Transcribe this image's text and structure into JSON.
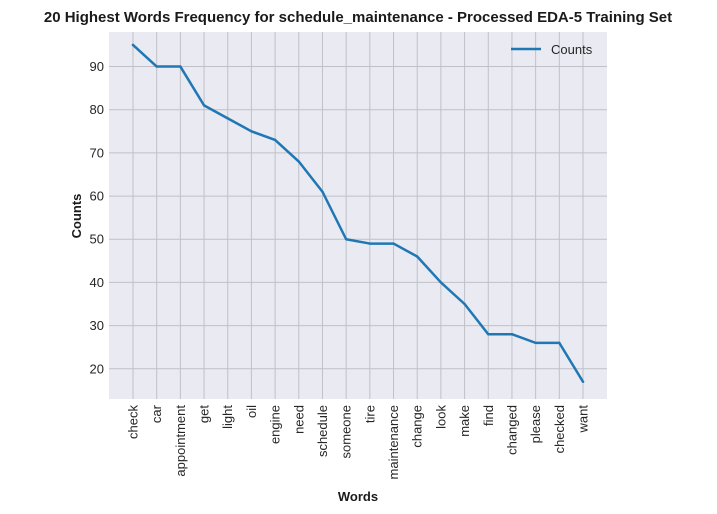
{
  "chart_data": {
    "type": "line",
    "title": "20 Highest Words Frequency for schedule_maintenance - Processed EDA-5 Training Set",
    "xlabel": "Words",
    "ylabel": "Counts",
    "categories": [
      "check",
      "car",
      "appointment",
      "get",
      "light",
      "oil",
      "engine",
      "need",
      "schedule",
      "someone",
      "tire",
      "maintenance",
      "change",
      "look",
      "make",
      "find",
      "changed",
      "please",
      "checked",
      "want"
    ],
    "series": [
      {
        "name": "Counts",
        "values": [
          95,
          90,
          90,
          81,
          78,
          75,
          73,
          68,
          61,
          50,
          49,
          49,
          46,
          40,
          35,
          28,
          28,
          26,
          26,
          17
        ],
        "color": "#1f77b4"
      }
    ],
    "ylim": [
      13,
      98
    ],
    "yticks": [
      20,
      30,
      40,
      50,
      60,
      70,
      80,
      90
    ],
    "grid": true,
    "legend": "top-right",
    "background": "#eaeaf2",
    "gridColor": "#c0c0c8"
  }
}
